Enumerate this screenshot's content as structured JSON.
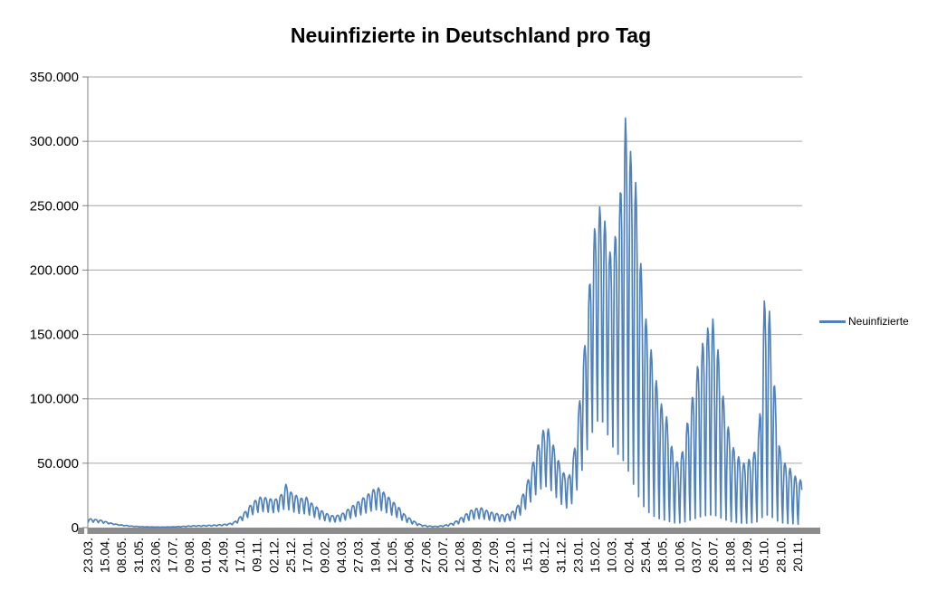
{
  "colors": {
    "series": "#4F81BD",
    "gridline": "#A6A6A6",
    "axis": "#808080",
    "axis_baseline": "#8C8C8C",
    "text": "#000000",
    "background": "#FFFFFF"
  },
  "chart_data": {
    "type": "line",
    "title": "Neuinfizierte in Deutschland pro Tag",
    "series": [
      {
        "name": "Neuinfizierte",
        "color": "#4F81BD"
      }
    ],
    "legend_position": "right",
    "grid": "horizontal",
    "ylim": [
      0,
      350000
    ],
    "y_axis": {
      "min": 0,
      "max": 350000,
      "tick_step": 50000,
      "ticks": [
        {
          "value": 0,
          "label": "0"
        },
        {
          "value": 50000,
          "label": "50.000"
        },
        {
          "value": 100000,
          "label": "100.000"
        },
        {
          "value": 150000,
          "label": "150.000"
        },
        {
          "value": 200000,
          "label": "200.000"
        },
        {
          "value": 250000,
          "label": "250.000"
        },
        {
          "value": 300000,
          "label": "300.000"
        },
        {
          "value": 350000,
          "label": "350.000"
        }
      ]
    },
    "x_axis": {
      "n_points": 972,
      "tick_interval_points": 23,
      "label_rotation": -90,
      "tick_labels": [
        "23.03.",
        "15.04.",
        "08.05.",
        "31.05.",
        "23.06.",
        "17.07.",
        "09.08.",
        "01.09.",
        "24.09.",
        "17.10.",
        "09.11.",
        "02.12.",
        "25.12.",
        "17.01.",
        "09.02.",
        "04.03.",
        "27.03.",
        "19.04.",
        "12.05.",
        "04.06.",
        "27.06.",
        "20.07.",
        "12.08.",
        "04.09.",
        "27.09.",
        "23.10.",
        "15.11.",
        "08.12.",
        "31.12.",
        "23.01.",
        "15.02.",
        "10.03.",
        "02.04.",
        "25.04.",
        "18.05.",
        "10.06.",
        "03.07.",
        "26.07.",
        "18.08.",
        "12.09.",
        "05.10.",
        "28.10.",
        "20.11."
      ]
    },
    "encoding": "Daily series reconstructed as: value(i) = envelope_low(i) + (envelope_high(i) - envelope_low(i)) * weekly_profile[i mod 7]; envelopes are [day_index, value] anchors estimated from gridlines.",
    "weekly_profile": [
      0.05,
      0.55,
      0.92,
      1.0,
      0.96,
      0.8,
      0.3
    ],
    "envelope_high": [
      [
        3,
        6800
      ],
      [
        10,
        6300
      ],
      [
        17,
        5800
      ],
      [
        24,
        4600
      ],
      [
        31,
        3500
      ],
      [
        38,
        2700
      ],
      [
        45,
        2100
      ],
      [
        59,
        1200
      ],
      [
        73,
        750
      ],
      [
        87,
        520
      ],
      [
        101,
        480
      ],
      [
        115,
        620
      ],
      [
        129,
        1000
      ],
      [
        143,
        1450
      ],
      [
        157,
        1650
      ],
      [
        171,
        1950
      ],
      [
        185,
        2500
      ],
      [
        192,
        3100
      ],
      [
        199,
        4400
      ],
      [
        206,
        8000
      ],
      [
        213,
        12000
      ],
      [
        220,
        17000
      ],
      [
        227,
        21000
      ],
      [
        234,
        23600
      ],
      [
        241,
        23300
      ],
      [
        248,
        22300
      ],
      [
        255,
        22100
      ],
      [
        262,
        25000
      ],
      [
        269,
        33500
      ],
      [
        276,
        27500
      ],
      [
        283,
        25000
      ],
      [
        290,
        22800
      ],
      [
        297,
        23500
      ],
      [
        304,
        19000
      ],
      [
        311,
        16000
      ],
      [
        318,
        13000
      ],
      [
        325,
        10800
      ],
      [
        332,
        9300
      ],
      [
        339,
        9500
      ],
      [
        346,
        11000
      ],
      [
        353,
        14000
      ],
      [
        360,
        17000
      ],
      [
        367,
        20000
      ],
      [
        374,
        23000
      ],
      [
        381,
        26000
      ],
      [
        388,
        29500
      ],
      [
        395,
        30800
      ],
      [
        402,
        27500
      ],
      [
        409,
        23500
      ],
      [
        416,
        19500
      ],
      [
        423,
        15500
      ],
      [
        430,
        10500
      ],
      [
        437,
        7400
      ],
      [
        444,
        4800
      ],
      [
        451,
        2700
      ],
      [
        458,
        1700
      ],
      [
        465,
        1200
      ],
      [
        472,
        1000
      ],
      [
        479,
        1300
      ],
      [
        486,
        2000
      ],
      [
        493,
        3000
      ],
      [
        500,
        4800
      ],
      [
        507,
        7500
      ],
      [
        514,
        10500
      ],
      [
        521,
        13500
      ],
      [
        528,
        14900
      ],
      [
        535,
        15300
      ],
      [
        542,
        13400
      ],
      [
        549,
        11900
      ],
      [
        556,
        10900
      ],
      [
        563,
        9900
      ],
      [
        570,
        10400
      ],
      [
        577,
        12400
      ],
      [
        584,
        16500
      ],
      [
        591,
        25000
      ],
      [
        598,
        36000
      ],
      [
        605,
        50000
      ],
      [
        612,
        64000
      ],
      [
        619,
        75500
      ],
      [
        626,
        76500
      ],
      [
        633,
        64000
      ],
      [
        640,
        52000
      ],
      [
        647,
        42500
      ],
      [
        654,
        39500
      ],
      [
        661,
        58000
      ],
      [
        668,
        95000
      ],
      [
        675,
        138000
      ],
      [
        682,
        188000
      ],
      [
        689,
        232000
      ],
      [
        696,
        249000
      ],
      [
        703,
        238000
      ],
      [
        710,
        214000
      ],
      [
        717,
        226000
      ],
      [
        724,
        260000
      ],
      [
        731,
        318000
      ],
      [
        738,
        292000
      ],
      [
        745,
        268000
      ],
      [
        752,
        205000
      ],
      [
        759,
        162000
      ],
      [
        766,
        138000
      ],
      [
        773,
        114000
      ],
      [
        780,
        96000
      ],
      [
        787,
        86000
      ],
      [
        794,
        63000
      ],
      [
        801,
        51000
      ],
      [
        808,
        58000
      ],
      [
        815,
        81000
      ],
      [
        822,
        101000
      ],
      [
        829,
        125000
      ],
      [
        836,
        143000
      ],
      [
        843,
        155000
      ],
      [
        850,
        162000
      ],
      [
        857,
        138000
      ],
      [
        864,
        102000
      ],
      [
        871,
        78000
      ],
      [
        878,
        62000
      ],
      [
        885,
        55000
      ],
      [
        892,
        50000
      ],
      [
        899,
        53000
      ],
      [
        906,
        58000
      ],
      [
        913,
        78000
      ],
      [
        920,
        176000
      ],
      [
        927,
        168000
      ],
      [
        934,
        110000
      ],
      [
        941,
        62000
      ],
      [
        948,
        50000
      ],
      [
        955,
        46000
      ],
      [
        962,
        40000
      ],
      [
        969,
        37000
      ]
    ],
    "envelope_low": [
      [
        3,
        4200
      ],
      [
        17,
        3600
      ],
      [
        31,
        2600
      ],
      [
        45,
        1500
      ],
      [
        59,
        800
      ],
      [
        73,
        450
      ],
      [
        87,
        330
      ],
      [
        101,
        290
      ],
      [
        115,
        370
      ],
      [
        129,
        580
      ],
      [
        143,
        850
      ],
      [
        157,
        950
      ],
      [
        171,
        1120
      ],
      [
        185,
        1450
      ],
      [
        199,
        2400
      ],
      [
        206,
        4200
      ],
      [
        213,
        6000
      ],
      [
        220,
        8500
      ],
      [
        227,
        10400
      ],
      [
        234,
        11900
      ],
      [
        241,
        11700
      ],
      [
        248,
        11100
      ],
      [
        255,
        11000
      ],
      [
        262,
        12200
      ],
      [
        269,
        14200
      ],
      [
        276,
        12000
      ],
      [
        283,
        10800
      ],
      [
        290,
        9900
      ],
      [
        297,
        10200
      ],
      [
        304,
        8300
      ],
      [
        311,
        6800
      ],
      [
        318,
        5500
      ],
      [
        325,
        4600
      ],
      [
        332,
        4000
      ],
      [
        339,
        4100
      ],
      [
        346,
        4800
      ],
      [
        353,
        6000
      ],
      [
        360,
        7300
      ],
      [
        367,
        8600
      ],
      [
        374,
        9900
      ],
      [
        381,
        11200
      ],
      [
        388,
        12700
      ],
      [
        395,
        13200
      ],
      [
        402,
        11800
      ],
      [
        409,
        10100
      ],
      [
        416,
        8400
      ],
      [
        423,
        6600
      ],
      [
        430,
        4500
      ],
      [
        437,
        3200
      ],
      [
        444,
        2100
      ],
      [
        451,
        1200
      ],
      [
        458,
        750
      ],
      [
        465,
        520
      ],
      [
        472,
        430
      ],
      [
        479,
        560
      ],
      [
        486,
        850
      ],
      [
        493,
        1300
      ],
      [
        500,
        2100
      ],
      [
        507,
        3200
      ],
      [
        514,
        4500
      ],
      [
        521,
        5800
      ],
      [
        528,
        6400
      ],
      [
        535,
        6600
      ],
      [
        542,
        5800
      ],
      [
        549,
        5100
      ],
      [
        556,
        4700
      ],
      [
        563,
        4300
      ],
      [
        570,
        4500
      ],
      [
        577,
        5300
      ],
      [
        584,
        7100
      ],
      [
        591,
        10700
      ],
      [
        598,
        15500
      ],
      [
        605,
        21000
      ],
      [
        612,
        26000
      ],
      [
        619,
        29500
      ],
      [
        626,
        29500
      ],
      [
        633,
        24500
      ],
      [
        640,
        19500
      ],
      [
        647,
        14500
      ],
      [
        654,
        13500
      ],
      [
        661,
        19500
      ],
      [
        668,
        32000
      ],
      [
        675,
        47000
      ],
      [
        682,
        61000
      ],
      [
        689,
        71000
      ],
      [
        696,
        77000
      ],
      [
        703,
        71000
      ],
      [
        710,
        59000
      ],
      [
        717,
        51000
      ],
      [
        724,
        44000
      ],
      [
        731,
        36000
      ],
      [
        738,
        26000
      ],
      [
        745,
        17000
      ],
      [
        752,
        10000
      ],
      [
        759,
        6000
      ],
      [
        766,
        3500
      ],
      [
        773,
        2200
      ],
      [
        780,
        1600
      ],
      [
        787,
        1300
      ],
      [
        794,
        1000
      ],
      [
        801,
        900
      ],
      [
        808,
        950
      ],
      [
        815,
        1100
      ],
      [
        822,
        1300
      ],
      [
        829,
        1600
      ],
      [
        836,
        1800
      ],
      [
        843,
        2000
      ],
      [
        850,
        2000
      ],
      [
        857,
        1800
      ],
      [
        864,
        1600
      ],
      [
        871,
        1400
      ],
      [
        878,
        1200
      ],
      [
        885,
        1000
      ],
      [
        892,
        900
      ],
      [
        899,
        950
      ],
      [
        906,
        1000
      ],
      [
        913,
        1100
      ],
      [
        920,
        1300
      ],
      [
        927,
        1250
      ],
      [
        934,
        1150
      ],
      [
        941,
        1000
      ],
      [
        948,
        900
      ],
      [
        955,
        850
      ],
      [
        962,
        800
      ],
      [
        969,
        750
      ]
    ]
  }
}
